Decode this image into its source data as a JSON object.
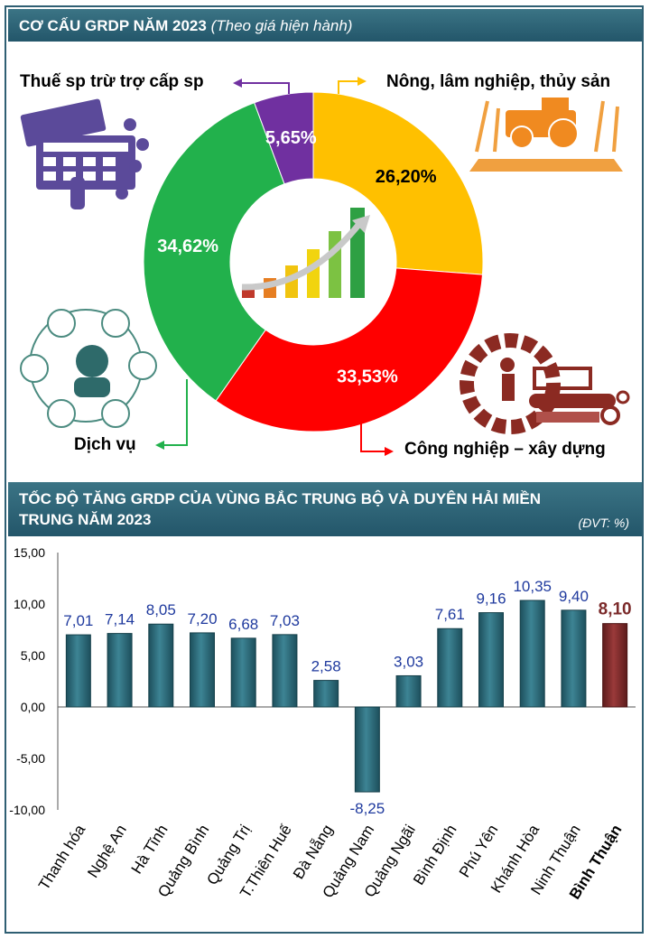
{
  "section1": {
    "title": "CƠ CẤU GRDP NĂM 2023",
    "subtitle": "(Theo giá hiện hành)"
  },
  "section2": {
    "title_line1": "TỐC ĐỘ TĂNG GRDP CỦA VÙNG BẮC TRUNG BỘ VÀ DUYÊN HẢI MIỀN",
    "title_line2": "TRUNG NĂM 2023",
    "unit": "(ĐVT:  %)"
  },
  "chart_data": [
    {
      "type": "pie",
      "title": "CƠ CẤU GRDP NĂM 2023",
      "subtitle": "(Theo giá hiện hành)",
      "labels": [
        "Nông, lâm nghiệp, thủy sản",
        "Công nghiệp – xây dựng",
        "Dịch vụ",
        "Thuế sp trừ trợ cấp sp"
      ],
      "values": [
        26.2,
        33.53,
        34.62,
        5.65
      ],
      "value_labels": [
        "26,20%",
        "33,53%",
        "34,62%",
        "5,65%"
      ],
      "colors": [
        "#ffc000",
        "#ff0000",
        "#22b14c",
        "#7030a0"
      ]
    },
    {
      "type": "bar",
      "title": "TỐC ĐỘ TĂNG GRDP CỦA VÙNG BẮC TRUNG BỘ VÀ DUYÊN HẢI MIỀN TRUNG NĂM 2023",
      "unit": "(ĐVT:  %)",
      "categories": [
        "Thanh hóa",
        "Nghệ An",
        "Hà Tĩnh",
        "Quảng Bình",
        "Quảng Trị",
        "T.Thiên Huế",
        "Đà Nẵng",
        "Quảng Nam",
        "Quảng Ngãi",
        "Bình Định",
        "Phú Yên",
        "Khánh Hòa",
        "Ninh Thuận",
        "Bình Thuận"
      ],
      "values": [
        7.01,
        7.14,
        8.05,
        7.2,
        6.68,
        7.03,
        2.58,
        -8.25,
        3.03,
        7.61,
        9.16,
        10.35,
        9.4,
        8.1
      ],
      "value_labels": [
        "7,01",
        "7,14",
        "8,05",
        "7,20",
        "6,68",
        "7,03",
        "2,58",
        "-8,25",
        "3,03",
        "7,61",
        "9,16",
        "10,35",
        "9,40",
        "8,10"
      ],
      "yticks": [
        "15,00",
        "10,00",
        "5,00",
        "0,00",
        "-5,00",
        "-10,00"
      ],
      "ylim": [
        -10,
        15
      ],
      "highlight": "Bình Thuận",
      "colors": {
        "bar": "#2f6b78",
        "highlight": "#7b2a2a",
        "value_label": "#1f3a9e"
      }
    }
  ]
}
